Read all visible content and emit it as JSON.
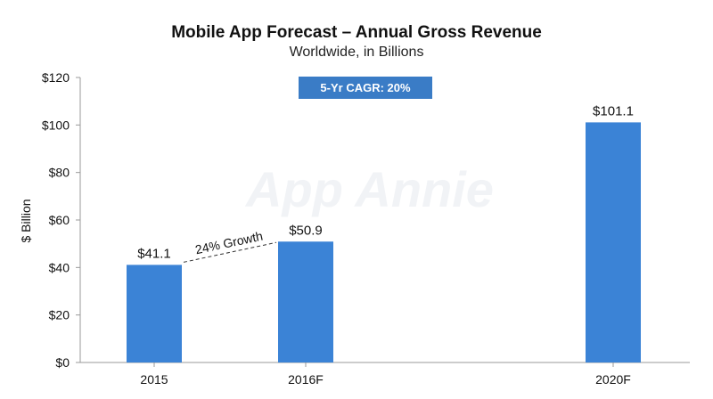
{
  "chart_data": {
    "type": "bar",
    "title": "Mobile App Forecast – Annual Gross Revenue",
    "subtitle": "Worldwide, in Billions",
    "ylabel": "$ Billion",
    "xlabel": "",
    "categories": [
      "2015",
      "2016F",
      "2020F"
    ],
    "values": [
      41.1,
      50.9,
      101.1
    ],
    "data_labels": [
      "$41.1",
      "$50.9",
      "$101.1"
    ],
    "ylim": [
      0,
      120
    ],
    "y_ticks": [
      0,
      20,
      40,
      60,
      80,
      100,
      120
    ],
    "y_tick_labels": [
      "$0",
      "$20",
      "$40",
      "$60",
      "$80",
      "$100",
      "$120"
    ],
    "grid": false,
    "legend": "none",
    "bar_color": "#3b83d6",
    "badge": {
      "text": "5-Yr CAGR: 20%",
      "color": "#3a7cc6"
    },
    "annotation": {
      "text": "24% Growth",
      "from": "2015",
      "to": "2016F"
    },
    "watermark": "App Annie"
  }
}
